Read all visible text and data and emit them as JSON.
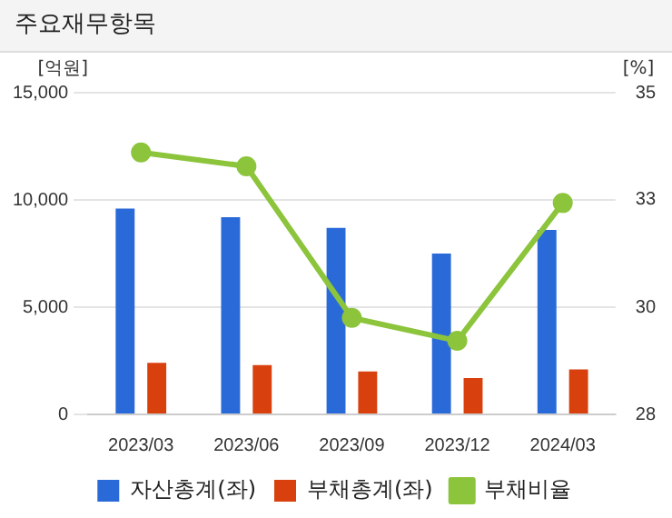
{
  "chart_data": {
    "type": "bar",
    "title": "주요재무항목",
    "ylabel": "[억원]",
    "y2label": "[%]",
    "categories": [
      "2023/03",
      "2023/06",
      "2023/09",
      "2023/12",
      "2024/03"
    ],
    "series": [
      {
        "name": "자산총계(좌)",
        "color": "#2a6ad8",
        "values": [
          9600,
          9200,
          8700,
          7500,
          8600
        ]
      },
      {
        "name": "부채총계(좌)",
        "color": "#d8400e",
        "values": [
          2400,
          2300,
          2000,
          1700,
          2100
        ]
      },
      {
        "name": "부채비율",
        "type": "line",
        "axis": "y2",
        "color": "#8cc43c",
        "marker": "circle",
        "values": [
          33.7,
          33.4,
          30.1,
          29.6,
          32.6
        ]
      }
    ],
    "ylim": [
      0,
      15000
    ],
    "yticks": [
      0,
      {
        "value": 5000,
        "label": "5,000"
      },
      {
        "value": 10000,
        "label": "10,000"
      },
      {
        "value": 15000,
        "label": "15,000"
      }
    ],
    "y2lim": [
      28,
      35
    ],
    "y2ticks": [
      28,
      {
        "value": 30.333,
        "label": "30"
      },
      {
        "value": 32.667,
        "label": "33"
      },
      35
    ],
    "grid": "y",
    "legend": "bottom"
  }
}
